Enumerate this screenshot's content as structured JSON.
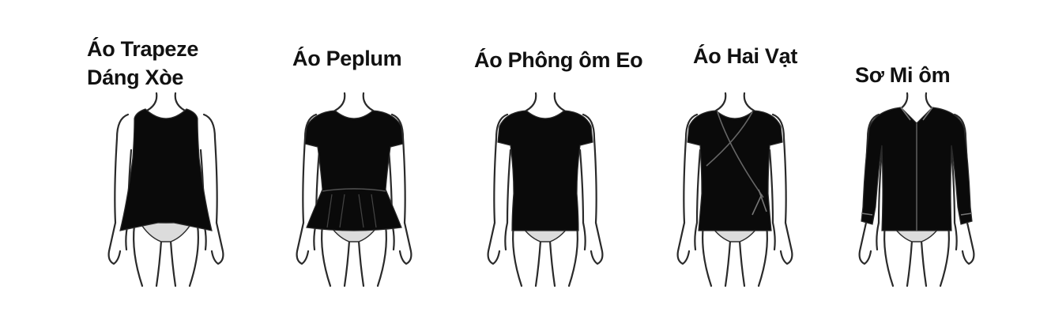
{
  "colors": {
    "background": "#ffffff",
    "garment": "#0a0a0a",
    "outline": "#2a2a2a",
    "underwear": "#dcdcdc"
  },
  "items": [
    {
      "lines": [
        "Áo Trapeze",
        "Dáng Xòe"
      ],
      "icon": "trapeze-top-figure-icon"
    },
    {
      "lines": [
        "Áo Peplum"
      ],
      "icon": "peplum-top-figure-icon"
    },
    {
      "lines": [
        "Áo Phông ôm Eo"
      ],
      "icon": "fitted-tshirt-figure-icon"
    },
    {
      "lines": [
        "Áo Hai Vạt"
      ],
      "icon": "wrap-top-figure-icon"
    },
    {
      "lines": [
        "Sơ Mi ôm"
      ],
      "icon": "fitted-shirt-figure-icon"
    }
  ]
}
